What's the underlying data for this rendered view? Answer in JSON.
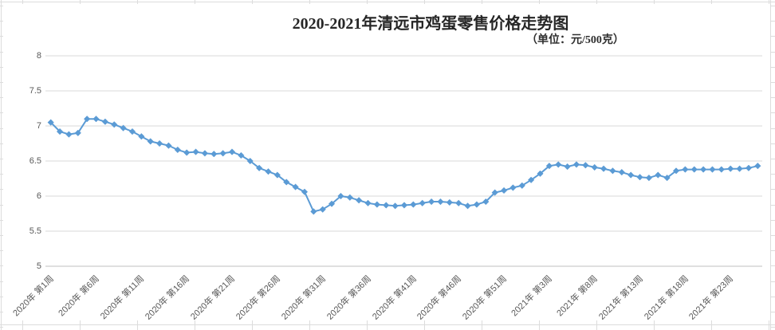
{
  "chart_data": {
    "type": "line",
    "title": "2020-2021年清远市鸡蛋零售价格走势图",
    "subtitle": "（单位：元/500克）",
    "unit": "元/500克",
    "ylim": [
      5,
      8
    ],
    "y_tick_labels": [
      "8",
      "7.5",
      "7",
      "6.5",
      "6",
      "5.5",
      "5"
    ],
    "y_tick_values": [
      8,
      7.5,
      7,
      6.5,
      6,
      5.5,
      5
    ],
    "grid": "horizontal",
    "legend": "none",
    "marker_shape": "diamond",
    "colors": {
      "line": "#5B9BD5",
      "grid": "#D9D9D9",
      "axis": "#BFBFBF",
      "tick_text": "#595959",
      "title_text": "#262626"
    },
    "n_points": 79,
    "x_tick_labels": [
      {
        "index": 0,
        "label": "2020年 第1周"
      },
      {
        "index": 5,
        "label": "2020年 第6周"
      },
      {
        "index": 10,
        "label": "2020年 第11周"
      },
      {
        "index": 15,
        "label": "2020年 第16周"
      },
      {
        "index": 20,
        "label": "2020年 第21周"
      },
      {
        "index": 25,
        "label": "2020年 第26周"
      },
      {
        "index": 30,
        "label": "2020年 第31周"
      },
      {
        "index": 35,
        "label": "2020年 第36周"
      },
      {
        "index": 40,
        "label": "2020年 第41周"
      },
      {
        "index": 45,
        "label": "2020年 第46周"
      },
      {
        "index": 50,
        "label": "2020年 第51周"
      },
      {
        "index": 55,
        "label": "2021年 第3周"
      },
      {
        "index": 60,
        "label": "2021年 第8周"
      },
      {
        "index": 65,
        "label": "2021年 第13周"
      },
      {
        "index": 70,
        "label": "2021年 第18周"
      },
      {
        "index": 75,
        "label": "2021年 第23周"
      }
    ],
    "values": [
      7.05,
      6.92,
      6.88,
      6.9,
      7.1,
      7.1,
      7.06,
      7.02,
      6.97,
      6.92,
      6.85,
      6.78,
      6.75,
      6.72,
      6.66,
      6.62,
      6.63,
      6.61,
      6.6,
      6.61,
      6.63,
      6.58,
      6.5,
      6.4,
      6.35,
      6.3,
      6.2,
      6.13,
      6.06,
      5.78,
      5.81,
      5.89,
      6.0,
      5.98,
      5.94,
      5.9,
      5.88,
      5.87,
      5.86,
      5.87,
      5.88,
      5.9,
      5.92,
      5.92,
      5.91,
      5.9,
      5.86,
      5.88,
      5.92,
      6.05,
      6.08,
      6.12,
      6.15,
      6.23,
      6.32,
      6.43,
      6.45,
      6.42,
      6.45,
      6.44,
      6.41,
      6.39,
      6.36,
      6.34,
      6.3,
      6.27,
      6.26,
      6.3,
      6.26,
      6.36,
      6.38,
      6.38,
      6.38,
      6.38,
      6.38,
      6.39,
      6.39,
      6.4,
      6.43
    ]
  }
}
